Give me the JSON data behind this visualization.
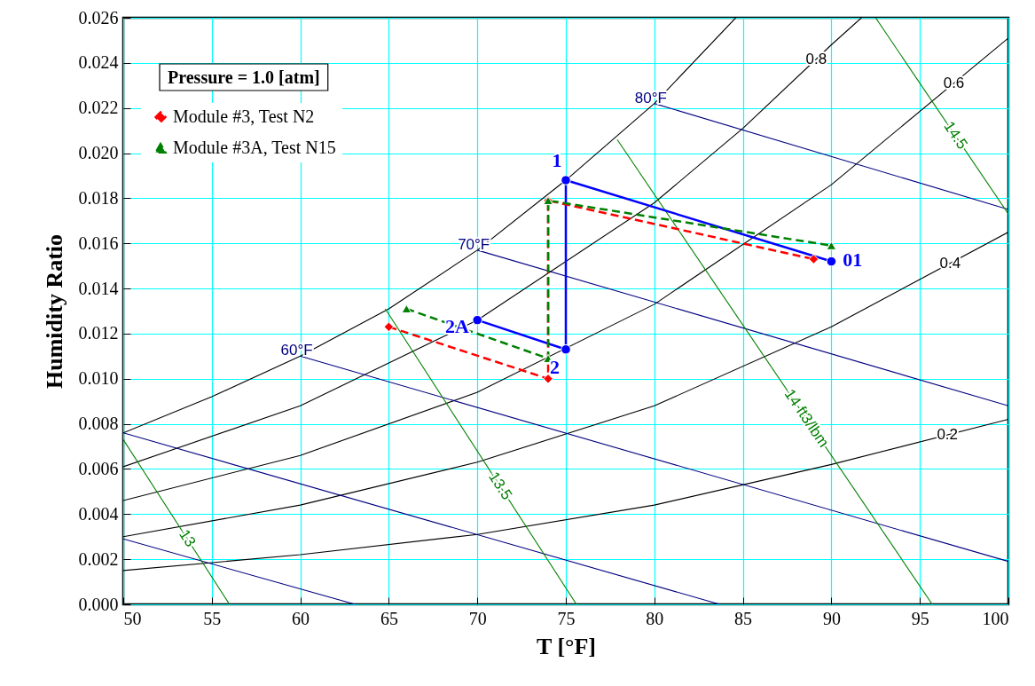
{
  "chart_data": {
    "type": "line",
    "xlabel": "T [°F]",
    "ylabel": "Humidity Ratio",
    "xlim": [
      50,
      100
    ],
    "xticks": [
      50,
      55,
      60,
      65,
      70,
      75,
      80,
      85,
      90,
      95,
      100
    ],
    "ylim": [
      0,
      0.026
    ],
    "yticks": [
      {
        "value": 0,
        "label": "0.000"
      },
      {
        "value": 0.002,
        "label": "0.002"
      },
      {
        "value": 0.004,
        "label": "0.004"
      },
      {
        "value": 0.006,
        "label": "0.006"
      },
      {
        "value": 0.008,
        "label": "0.008"
      },
      {
        "value": 0.01,
        "label": "0.010"
      },
      {
        "value": 0.012,
        "label": "0.012"
      },
      {
        "value": 0.014,
        "label": "0.014"
      },
      {
        "value": 0.016,
        "label": "0.016"
      },
      {
        "value": 0.018,
        "label": "0.018"
      },
      {
        "value": 0.02,
        "label": "0.020"
      },
      {
        "value": 0.022,
        "label": "0.022"
      },
      {
        "value": 0.024,
        "label": "0.024"
      },
      {
        "value": 0.026,
        "label": "0.026"
      }
    ],
    "grid": true,
    "legend": "top left",
    "series": [
      {
        "color": "#000000",
        "x": [
          50,
          55,
          60,
          65,
          70,
          75,
          80,
          84.6
        ],
        "values": [
          0.0076,
          0.0092,
          0.011,
          0.0131,
          0.0157,
          0.0188,
          0.0222,
          0.026
        ]
      },
      {
        "name": "0.8",
        "color": "#000000",
        "x": [
          50,
          60,
          70,
          80,
          85,
          90,
          91.7
        ],
        "values": [
          0.0061,
          0.0088,
          0.0126,
          0.0178,
          0.0211,
          0.0248,
          0.026
        ]
      },
      {
        "name": "0.6",
        "color": "#000000",
        "x": [
          50,
          60,
          70,
          80,
          90,
          100
        ],
        "values": [
          0.0046,
          0.0066,
          0.0094,
          0.0133,
          0.0186,
          0.0251
        ]
      },
      {
        "name": "0.4",
        "color": "#000000",
        "x": [
          50,
          60,
          70,
          80,
          90,
          100
        ],
        "values": [
          0.003,
          0.0044,
          0.0063,
          0.0088,
          0.0123,
          0.0165
        ]
      },
      {
        "name": "0.2",
        "color": "#000000",
        "x": [
          50,
          60,
          70,
          80,
          90,
          100
        ],
        "values": [
          0.0015,
          0.0022,
          0.0031,
          0.0044,
          0.0062,
          0.0082
        ]
      },
      {
        "color": "#000080",
        "x": [
          50,
          63.1
        ],
        "values": [
          0.0029,
          0
        ]
      },
      {
        "color": "#000080",
        "x": [
          50,
          83.7
        ],
        "values": [
          0.0076,
          0
        ]
      },
      {
        "name": "60°F",
        "color": "#000080",
        "x": [
          60,
          100
        ],
        "values": [
          0.011,
          0.0019
        ]
      },
      {
        "name": "70°F",
        "color": "#000080",
        "x": [
          70,
          100
        ],
        "values": [
          0.0157,
          0.0088
        ]
      },
      {
        "name": "80°F",
        "color": "#000080",
        "x": [
          80,
          100
        ],
        "values": [
          0.0222,
          0.0175
        ]
      },
      {
        "name": "13",
        "color": "#008000",
        "x": [
          50,
          56
        ],
        "values": [
          0.0073,
          0
        ]
      },
      {
        "name": "13.5",
        "color": "#008000",
        "x": [
          64.8,
          75.6
        ],
        "values": [
          0.0131,
          0
        ]
      },
      {
        "name": "14 ft3/lbm",
        "color": "#008000",
        "x": [
          77.9,
          95.7
        ],
        "values": [
          0.0206,
          0
        ]
      },
      {
        "name": "14.5",
        "color": "#008000",
        "x": [
          92.5,
          100
        ],
        "values": [
          0.026,
          0.0173
        ]
      },
      {
        "name": "Module #3, Test N2",
        "color": "#ff0000",
        "marker": "diamond",
        "line_style": "dashed",
        "x": [
          65,
          74,
          74,
          89
        ],
        "values": [
          0.0123,
          0.01,
          0.0179,
          0.0153
        ]
      },
      {
        "name": "Module #3A, Test N15",
        "color": "#008000",
        "marker": "triangle",
        "line_style": "dashed",
        "x": [
          66,
          74,
          74,
          90
        ],
        "values": [
          0.0131,
          0.0109,
          0.0179,
          0.0159
        ]
      },
      {
        "color": "#0000ff",
        "marker": "circle",
        "x": [
          70,
          75,
          75,
          90
        ],
        "values": [
          0.0126,
          0.0113,
          0.0188,
          0.0152
        ]
      }
    ],
    "annotations": [
      "Pressure = 1.0 [atm]",
      {
        "text": "1",
        "x": 75,
        "y": 0.0188
      },
      {
        "text": "2",
        "x": 75,
        "y": 0.0113
      },
      {
        "text": "2A",
        "x": 70,
        "y": 0.0126
      },
      {
        "text": "01",
        "x": 90,
        "y": 0.0152
      }
    ]
  }
}
